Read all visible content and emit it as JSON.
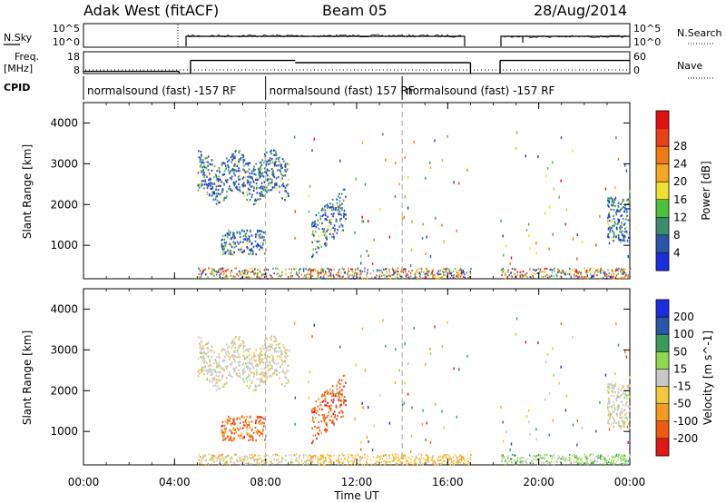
{
  "header": {
    "station": "Adak West (fitACF)",
    "beam": "Beam 05",
    "date": "28/Aug/2014"
  },
  "left_labels": {
    "nsky": "N.Sky",
    "freq_1": "Freq.",
    "freq_2": "[MHz]",
    "cpid": "CPID"
  },
  "right_labels": {
    "nsearch": "N.Search",
    "nave": "Nave"
  },
  "ticks": {
    "noise_left_top": "10^5",
    "noise_left_bottom": "10^0",
    "noise_right_top": "10^5",
    "noise_right_bottom": "10^0",
    "freq_top": "18",
    "freq_bottom": "8",
    "nave_top": "60",
    "nave_bottom": "0"
  },
  "cpid_segments": [
    {
      "label": "normalsound (fast) -157 RF",
      "start_h": 0,
      "end_h": 8
    },
    {
      "label": "normalsound (fast) 157 RF",
      "start_h": 8,
      "end_h": 14
    },
    {
      "label": "normalsound (fast) -157 RF",
      "start_h": 14,
      "end_h": 24
    }
  ],
  "time_axis": {
    "title": "Time UT",
    "ticks": [
      "00:00",
      "04:00",
      "08:00",
      "12:00",
      "16:00",
      "20:00",
      "00:00"
    ]
  },
  "range_axis": {
    "title": "Slant Range [km]",
    "ticks": [
      "1000",
      "2000",
      "3000",
      "4000"
    ]
  },
  "colorbars": {
    "power": {
      "title": "Power [dB]",
      "ticks": [
        "4",
        "8",
        "12",
        "16",
        "20",
        "24",
        "28"
      ],
      "colors": [
        "#1a2ee0",
        "#2a55a8",
        "#3b8c6e",
        "#4cbf3c",
        "#f0e030",
        "#f5a623",
        "#f07a10",
        "#e8401a",
        "#e01010"
      ]
    },
    "velocity": {
      "title": "Velocity [m s^-1]",
      "ticks": [
        "-200",
        "-100",
        "-50",
        "-15",
        "15",
        "50",
        "100",
        "200"
      ],
      "colors": [
        "#e01818",
        "#f05a10",
        "#f59a20",
        "#f2c83a",
        "#c8c8c8",
        "#8ed850",
        "#3a9a5a",
        "#2a55a8",
        "#1a2ee0"
      ]
    }
  },
  "chart_data": {
    "type": "heatmap",
    "x_unit": "hours UT",
    "xlim": [
      0,
      24
    ],
    "ylim_km": [
      180,
      4500
    ],
    "frequency_MHz": [
      {
        "start_h": 0,
        "end_h": 4.2,
        "value": 9
      },
      {
        "start_h": 4.7,
        "end_h": 9.3,
        "value": 14
      },
      {
        "start_h": 9.3,
        "end_h": 17.0,
        "value": 13
      },
      {
        "start_h": 18.3,
        "end_h": 24,
        "value": 14
      }
    ],
    "data_gaps_h": [
      [
        4.2,
        4.7
      ],
      [
        17.0,
        18.3
      ]
    ],
    "echo_regions": [
      {
        "start_h": 5.0,
        "end_h": 9.0,
        "range_km": [
          2200,
          3200
        ],
        "power_dB": 6,
        "velocity": "near zero"
      },
      {
        "start_h": 6.0,
        "end_h": 8.0,
        "range_km": [
          800,
          1400
        ],
        "power_dB": 8,
        "velocity": "-100"
      },
      {
        "start_h": 10.0,
        "end_h": 11.5,
        "range_km": [
          700,
          1700
        ],
        "power_dB": 6,
        "velocity": "-150"
      },
      {
        "start_h": 23.0,
        "end_h": 24,
        "range_km": [
          1100,
          2200
        ],
        "power_dB": 5,
        "velocity": "near zero"
      }
    ]
  }
}
